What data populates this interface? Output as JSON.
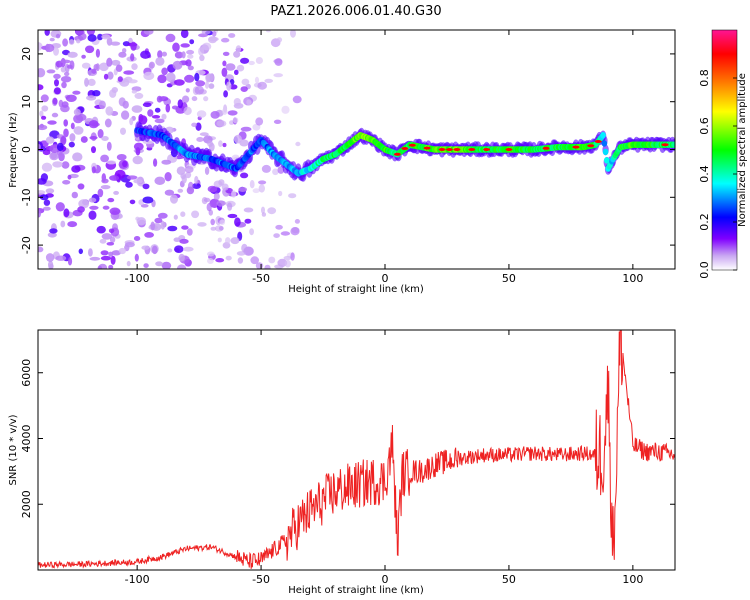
{
  "title": "PAZ1.2026.006.01.40.G30",
  "chart_data": [
    {
      "type": "heatmap",
      "xlabel": "Height of straight line (km)",
      "ylabel": "Frequency (Hz)",
      "xlim": [
        -140,
        117
      ],
      "ylim": [
        -25,
        25
      ],
      "x_ticks": [
        -100,
        -50,
        0,
        50,
        100
      ],
      "y_ticks": [
        -20,
        -10,
        0,
        10,
        20
      ],
      "x_tick_labels": [
        "-100",
        "-50",
        "0",
        "50",
        "100"
      ],
      "y_tick_labels": [
        "-20",
        "-10",
        "0",
        "10",
        "20"
      ],
      "colorbar": {
        "label": "Normalized spectral amplitude",
        "range": [
          0,
          1
        ],
        "ticks": [
          0.0,
          0.2,
          0.4,
          0.6,
          0.8
        ],
        "tick_labels": [
          "0.0",
          "0.2",
          "0.4",
          "0.6",
          "0.8"
        ],
        "colors": [
          "#ffffff",
          "#8000ff",
          "#0000ff",
          "#00ffff",
          "#00ff00",
          "#ffff00",
          "#ff8000",
          "#ff0000",
          "#ff00aa"
        ]
      },
      "ridge": {
        "description_points_x": [
          -100,
          -90,
          -80,
          -70,
          -60,
          -50,
          -45,
          -40,
          -35,
          -30,
          -25,
          -20,
          -15,
          -10,
          -5,
          0,
          5,
          10,
          20,
          30,
          40,
          50,
          60,
          70,
          80,
          85,
          88,
          90,
          92,
          95,
          100,
          110,
          117
        ],
        "description_points_y": [
          4,
          3,
          -1,
          -2,
          -4,
          2,
          -1,
          -3,
          -5,
          -4,
          -2,
          -1,
          1,
          3,
          2,
          0,
          -1,
          1,
          0,
          0,
          0,
          0,
          0,
          0.5,
          0.5,
          1,
          3,
          -4,
          -2,
          0.5,
          1,
          1,
          1
        ],
        "amplitude": [
          0.25,
          0.3,
          0.35,
          0.3,
          0.3,
          0.3,
          0.35,
          0.35,
          0.4,
          0.45,
          0.55,
          0.6,
          0.6,
          0.75,
          0.7,
          0.65,
          0.55,
          0.6,
          0.7,
          0.7,
          0.6,
          0.65,
          0.6,
          0.6,
          0.65,
          0.6,
          0.4,
          0.4,
          0.45,
          0.6,
          0.7,
          0.6,
          0.55
        ]
      }
    },
    {
      "type": "line",
      "xlabel": "Height of straight line (km)",
      "ylabel": "SNR (10 * v/v)",
      "xlim": [
        -140,
        117
      ],
      "ylim": [
        0,
        7300
      ],
      "x_ticks": [
        -100,
        -50,
        0,
        50,
        100
      ],
      "y_ticks": [
        2000,
        4000,
        6000
      ],
      "x_tick_labels": [
        "-100",
        "-50",
        "0",
        "50",
        "100"
      ],
      "y_tick_labels": [
        "2000",
        "4000",
        "6000"
      ],
      "series": [
        {
          "name": "SNR",
          "color": "#ee2222",
          "x": [
            -140,
            -120,
            -100,
            -90,
            -80,
            -70,
            -60,
            -55,
            -50,
            -45,
            -40,
            -35,
            -30,
            -25,
            -20,
            -15,
            -10,
            -5,
            0,
            3,
            5,
            7,
            10,
            15,
            20,
            25,
            30,
            35,
            40,
            50,
            60,
            70,
            80,
            85,
            88,
            90,
            92,
            93,
            95,
            100,
            105,
            110,
            117
          ],
          "values": [
            150,
            180,
            250,
            400,
            650,
            700,
            400,
            250,
            300,
            600,
            900,
            1400,
            1800,
            2100,
            2400,
            2500,
            2600,
            2700,
            2700,
            3800,
            800,
            2900,
            3000,
            3000,
            3200,
            3300,
            3400,
            3450,
            3500,
            3500,
            3550,
            3500,
            3550,
            3500,
            3600,
            5500,
            600,
            2500,
            7200,
            3800,
            3600,
            3600,
            3500
          ]
        }
      ]
    }
  ]
}
